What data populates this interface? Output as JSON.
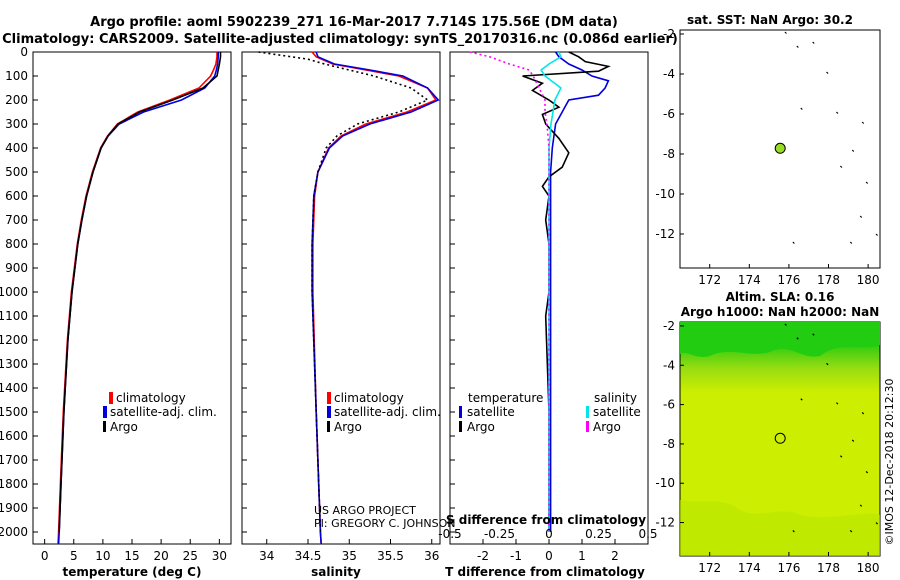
{
  "header": {
    "line1": "Argo profile: aoml 5902239_271 16-Mar-2017 7.714S 175.56E (DM data)",
    "line2": "Climatology: CARS2009. Satellite-adjusted climatology: synTS_20170316.nc (0.086d earlier)"
  },
  "colors": {
    "climatology": "#ff0000",
    "satellite": "#0000dd",
    "argo": "#000000",
    "cyan": "#00e5e5",
    "magenta": "#ff00ff",
    "map_dot": "#99dd22"
  },
  "chart_data": [
    {
      "id": "temperature",
      "type": "line",
      "xlabel": "temperature (deg C)",
      "xlim": [
        -2,
        32
      ],
      "xticks": [
        0,
        5,
        10,
        15,
        20,
        25,
        30
      ],
      "ylim": [
        0,
        2050
      ],
      "yticks": [
        0,
        100,
        200,
        300,
        400,
        500,
        600,
        700,
        800,
        900,
        1000,
        1100,
        1200,
        1300,
        1400,
        1500,
        1600,
        1700,
        1800,
        1900,
        2000
      ],
      "legend": [
        "climatology",
        "satellite-adj. clim.",
        "Argo"
      ],
      "series": [
        {
          "name": "climatology",
          "depth": [
            0,
            20,
            50,
            75,
            100,
            150,
            200,
            250,
            300,
            350,
            400,
            500,
            600,
            700,
            800,
            1000,
            1200,
            1500,
            1800,
            2000,
            2050
          ],
          "values": [
            29.6,
            29.6,
            29.4,
            29.0,
            28.5,
            26.5,
            21.5,
            16.0,
            12.5,
            10.8,
            9.6,
            8.2,
            7.1,
            6.3,
            5.6,
            4.6,
            3.9,
            3.2,
            2.7,
            2.4,
            2.3
          ]
        },
        {
          "name": "satellite-adj. clim.",
          "depth": [
            0,
            20,
            50,
            75,
            100,
            150,
            200,
            250,
            300,
            350,
            400,
            500,
            600,
            700,
            800,
            1000,
            1200,
            1500,
            1800,
            2000,
            2050
          ],
          "values": [
            29.8,
            29.8,
            29.7,
            29.5,
            29.2,
            27.5,
            23.5,
            17.0,
            12.8,
            10.9,
            9.7,
            8.3,
            7.2,
            6.4,
            5.7,
            4.7,
            4.0,
            3.3,
            2.8,
            2.5,
            2.4
          ]
        },
        {
          "name": "Argo",
          "depth": [
            0,
            20,
            50,
            75,
            100,
            150,
            200,
            250,
            300,
            350,
            400,
            500,
            600,
            700,
            800,
            1000,
            1200,
            1500,
            1800,
            2000
          ],
          "values": [
            30.2,
            30.2,
            30.0,
            29.8,
            29.6,
            27.2,
            22.0,
            16.3,
            12.6,
            10.9,
            9.7,
            8.3,
            7.2,
            6.4,
            5.7,
            4.7,
            4.0,
            3.3,
            2.8,
            2.5
          ]
        }
      ]
    },
    {
      "id": "salinity",
      "type": "line",
      "xlabel": "salinity",
      "xlim": [
        33.7,
        36.1
      ],
      "xticks": [
        34,
        34.5,
        35,
        35.5,
        36
      ],
      "ylim": [
        0,
        2050
      ],
      "legend": [
        "climatology",
        "satellite-adj. clim.",
        "Argo"
      ],
      "series": [
        {
          "name": "climatology",
          "depth": [
            0,
            20,
            50,
            75,
            100,
            150,
            200,
            250,
            300,
            350,
            400,
            500,
            600,
            800,
            1000,
            1500,
            2000,
            2050
          ],
          "values": [
            34.55,
            34.6,
            34.8,
            35.2,
            35.6,
            35.95,
            36.05,
            35.7,
            35.2,
            34.9,
            34.75,
            34.62,
            34.58,
            34.56,
            34.56,
            34.6,
            34.65,
            34.66
          ]
        },
        {
          "name": "satellite-adj. clim.",
          "depth": [
            0,
            20,
            50,
            75,
            100,
            150,
            200,
            250,
            300,
            350,
            400,
            500,
            600,
            800,
            1000,
            1500,
            2000,
            2050
          ],
          "values": [
            34.6,
            34.62,
            34.82,
            35.25,
            35.65,
            35.95,
            36.08,
            35.75,
            35.25,
            34.92,
            34.76,
            34.62,
            34.57,
            34.55,
            34.55,
            34.6,
            34.65,
            34.66
          ]
        },
        {
          "name": "Argo",
          "depth": [
            0,
            10,
            30,
            50,
            75,
            100,
            150,
            200,
            250,
            300,
            350,
            400,
            500,
            600,
            800,
            1000,
            1500,
            2000
          ],
          "values": [
            33.9,
            34.1,
            34.5,
            34.7,
            35.0,
            35.3,
            35.75,
            35.95,
            35.6,
            35.1,
            34.85,
            34.72,
            34.62,
            34.57,
            34.55,
            34.55,
            34.6,
            34.65
          ]
        }
      ]
    },
    {
      "id": "difference",
      "type": "line",
      "xlabel": "T difference from climatology",
      "xlabel2": "S difference from climatology",
      "xlim": [
        -3,
        3
      ],
      "xticks": [
        -2,
        -1,
        0,
        1,
        2
      ],
      "xticks_s": [
        "-0.5",
        "-0.25",
        "0",
        "0.25",
        "0.5"
      ],
      "ylim": [
        0,
        2050
      ],
      "legend_left_title": "temperature",
      "legend_right_title": "salinity",
      "legend_left": [
        "satellite",
        "Argo"
      ],
      "legend_right": [
        "satellite",
        "Argo"
      ],
      "series": [
        {
          "name": "T satellite",
          "depth": [
            0,
            20,
            50,
            75,
            100,
            120,
            150,
            180,
            200,
            250,
            300,
            400,
            500,
            600,
            800,
            1000,
            1500,
            2000
          ],
          "values": [
            0.2,
            0.3,
            0.6,
            1.0,
            1.3,
            1.8,
            1.7,
            1.5,
            0.6,
            0.4,
            0.2,
            0.1,
            0.05,
            0.05,
            0.05,
            0.05,
            0.05,
            0.05
          ]
        },
        {
          "name": "T Argo",
          "depth": [
            0,
            20,
            40,
            60,
            80,
            100,
            130,
            160,
            200,
            230,
            260,
            300,
            360,
            420,
            480,
            520,
            560,
            600,
            700,
            800,
            1000,
            1100,
            1500,
            2000
          ],
          "values": [
            0.6,
            0.9,
            1.1,
            1.8,
            1.5,
            -0.8,
            -0.2,
            -0.5,
            0.0,
            0.3,
            -0.2,
            -0.1,
            0.3,
            0.6,
            0.4,
            0.0,
            -0.2,
            0.0,
            -0.1,
            0.0,
            0.0,
            -0.1,
            0.0,
            0.0
          ]
        },
        {
          "name": "S satellite",
          "depth": [
            0,
            20,
            50,
            75,
            100,
            150,
            200,
            250,
            300,
            400,
            500,
            600,
            800,
            1000,
            1500,
            2000
          ],
          "values": [
            0.05,
            0.06,
            0.0,
            -0.04,
            -0.02,
            0.06,
            0.03,
            0.02,
            0.01,
            0.0,
            0.0,
            0.0,
            0.0,
            0.0,
            0.0,
            0.0
          ]
        },
        {
          "name": "S Argo",
          "depth": [
            0,
            20,
            50,
            75,
            100,
            150,
            200,
            250,
            300,
            400,
            500,
            600,
            800,
            1000,
            1500,
            2000
          ],
          "values": [
            -0.4,
            -0.3,
            -0.2,
            -0.1,
            -0.08,
            -0.05,
            -0.02,
            -0.02,
            -0.01,
            0.0,
            0.0,
            0.0,
            0.0,
            0.0,
            0.0,
            0.0
          ]
        }
      ]
    }
  ],
  "map1": {
    "title": "sat. SST: NaN Argo: 30.2",
    "xticks": [
      172,
      174,
      176,
      178,
      180
    ],
    "yticks": [
      -2,
      -4,
      -6,
      -8,
      -10,
      -12
    ],
    "xlim": [
      170.5,
      180.6
    ],
    "ylim": [
      -13.7,
      -1.8
    ],
    "point": {
      "lon": 175.56,
      "lat": -7.714
    },
    "track": [
      [
        175.8,
        -1.9
      ],
      [
        176.4,
        -2.6
      ],
      [
        177.2,
        -2.4
      ],
      [
        177.9,
        -3.9
      ],
      [
        176.6,
        -5.7
      ],
      [
        178.4,
        -5.9
      ],
      [
        179.7,
        -6.4
      ],
      [
        179.2,
        -7.8
      ],
      [
        178.6,
        -8.6
      ],
      [
        179.9,
        -9.4
      ],
      [
        179.6,
        -11.1
      ],
      [
        176.2,
        -12.4
      ],
      [
        179.1,
        -12.4
      ],
      [
        180.4,
        -12.0
      ]
    ]
  },
  "map2": {
    "title1": "Altim. SLA: 0.16",
    "title2": "Argo h1000: NaN h2000: NaN",
    "xticks": [
      172,
      174,
      176,
      178,
      180
    ],
    "yticks": [
      -2,
      -4,
      -6,
      -8,
      -10,
      -12
    ],
    "xlim": [
      170.5,
      180.6
    ],
    "ylim": [
      -13.7,
      -1.8
    ],
    "point": {
      "lon": 175.56,
      "lat": -7.714
    }
  },
  "credit": {
    "line1": "US ARGO PROJECT",
    "line2": "PI: GREGORY C. JOHNSON",
    "imos": "©IMOS 12-Dec-2018 20:12:30"
  }
}
